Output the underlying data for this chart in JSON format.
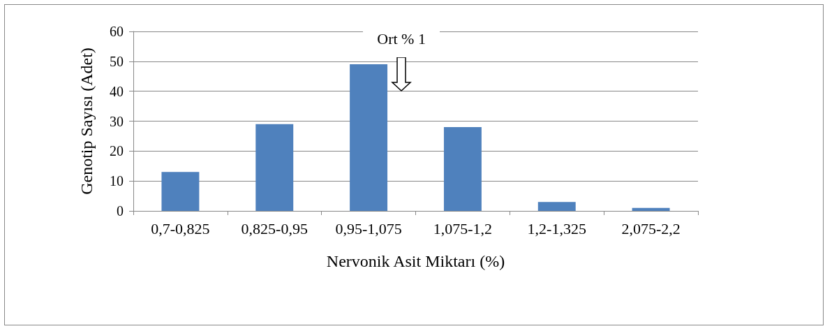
{
  "chart_data": {
    "type": "bar",
    "categories": [
      "0,7-0,825",
      "0,825-0,95",
      "0,95-1,075",
      "1,075-1,2",
      "1,2-1,325",
      "2,075-2,2"
    ],
    "values": [
      13,
      29,
      49,
      28,
      3,
      1
    ],
    "color": "#4f81bd",
    "xlabel": "Nervonik Asit Miktarı (%)",
    "ylabel": "Genotip Sayısı (Adet)",
    "ylim": [
      0,
      60
    ],
    "yticks": [
      0,
      10,
      20,
      30,
      40,
      50,
      60
    ],
    "grid": "y",
    "annotations": [
      "Ort % 1"
    ]
  }
}
